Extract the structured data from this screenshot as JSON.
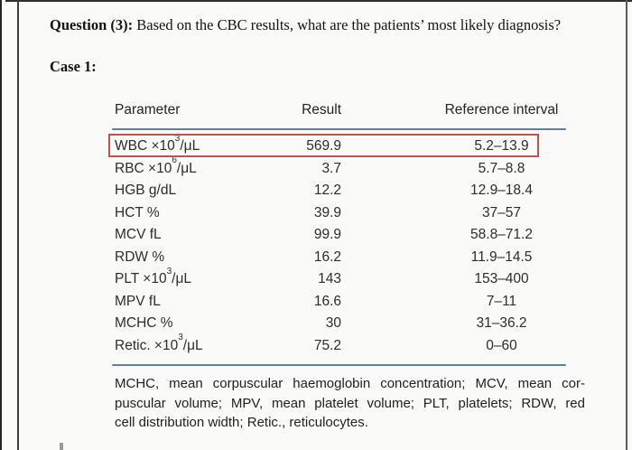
{
  "question": {
    "bold": "Question (3):",
    "rest": " Based on the CBC results, what are the patients’ most likely diagnosis?"
  },
  "case_label": "Case 1:",
  "table": {
    "headers": {
      "parameter": "Parameter",
      "result": "Result",
      "reference": "Reference interval"
    },
    "rows": [
      {
        "param_pre": "WBC ×10",
        "param_sup": "3",
        "param_post": "/μL",
        "result": "569.9",
        "reference": "5.2–13.9",
        "highlighted": true
      },
      {
        "param_pre": "RBC ×10",
        "param_sup": "6",
        "param_post": "/μL",
        "result": "3.7",
        "reference": "5.7–8.8",
        "highlighted": false
      },
      {
        "param_pre": "HGB g/dL",
        "param_sup": "",
        "param_post": "",
        "result": "12.2",
        "reference": "12.9–18.4",
        "highlighted": false
      },
      {
        "param_pre": "HCT %",
        "param_sup": "",
        "param_post": "",
        "result": "39.9",
        "reference": "37–57",
        "highlighted": false
      },
      {
        "param_pre": "MCV fL",
        "param_sup": "",
        "param_post": "",
        "result": "99.9",
        "reference": "58.8–71.2",
        "highlighted": false
      },
      {
        "param_pre": "RDW %",
        "param_sup": "",
        "param_post": "",
        "result": "16.2",
        "reference": "11.9–14.5",
        "highlighted": false
      },
      {
        "param_pre": "PLT ×10",
        "param_sup": "3",
        "param_post": "/μL",
        "result": "143",
        "reference": "153–400",
        "highlighted": false
      },
      {
        "param_pre": "MPV fL",
        "param_sup": "",
        "param_post": "",
        "result": "16.6",
        "reference": "7–11",
        "highlighted": false
      },
      {
        "param_pre": "MCHC %",
        "param_sup": "",
        "param_post": "",
        "result": "30",
        "reference": "31–36.2",
        "highlighted": false
      },
      {
        "param_pre": "Retic. ×10",
        "param_sup": "3",
        "param_post": "/μL",
        "result": "75.2",
        "reference": "0–60",
        "highlighted": false
      }
    ],
    "footnote_lines": [
      "MCHC, mean corpuscular haemoglobin concentration; MCV, mean cor-",
      "puscular volume; MPV, mean platelet volume; PLT, platelets; RDW, red",
      "cell distribution width; Retic., reticulocytes."
    ],
    "accent_blue": "#5e7fa8",
    "highlight_red": "#c0514d"
  }
}
